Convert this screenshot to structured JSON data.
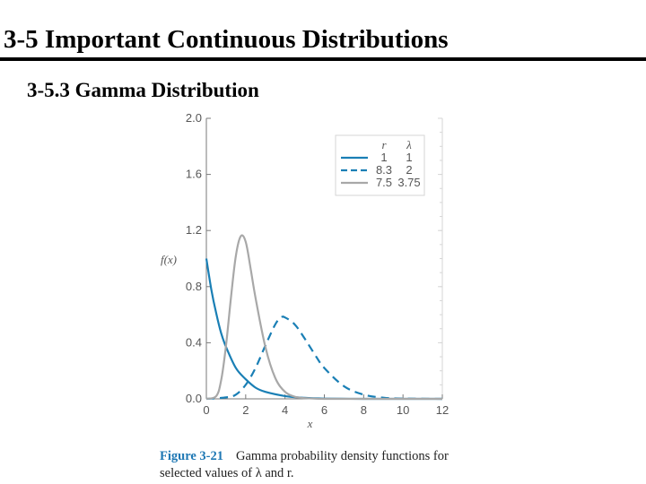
{
  "slide": {
    "title": "3-5   Important Continuous Distributions",
    "subtitle": "3-5.3 Gamma Distribution"
  },
  "caption": {
    "label": "Figure 3-21",
    "text": "Gamma probability density functions for selected values of λ and r."
  },
  "colors": {
    "series1": "#1a7fb5",
    "series2": "#1a7fb5",
    "series3": "#a8a8a8",
    "grid": "#d6d6d6",
    "axis": "#7a7a7a",
    "caption_label": "#1f78b4"
  },
  "chart_data": {
    "type": "line",
    "xlabel": "x",
    "ylabel": "f(x)",
    "xlim": [
      0,
      12
    ],
    "ylim": [
      0,
      2.0
    ],
    "x_ticks": [
      "0",
      "2",
      "4",
      "6",
      "8",
      "10",
      "12"
    ],
    "y_ticks": [
      "0.0",
      "0.4",
      "0.8",
      "1.2",
      "1.6",
      "2.0"
    ],
    "grid": false,
    "legend": {
      "position": "top-right",
      "headers": [
        "r",
        "λ"
      ]
    },
    "series": [
      {
        "r": "1",
        "lambda": "1",
        "style": "solid",
        "color": "#1a7fb5",
        "x": [
          0,
          0.25,
          0.5,
          0.75,
          1,
          1.5,
          2,
          2.5,
          3,
          4,
          5,
          6,
          8,
          10,
          12
        ],
        "y": [
          1.0,
          0.78,
          0.61,
          0.47,
          0.37,
          0.22,
          0.14,
          0.08,
          0.05,
          0.02,
          0.007,
          0.002,
          0.0,
          0.0,
          0.0
        ]
      },
      {
        "r": "8.3",
        "lambda": "2",
        "style": "dashed",
        "color": "#1a7fb5",
        "x": [
          0,
          1,
          1.5,
          2,
          2.5,
          3,
          3.5,
          3.8,
          4,
          4.5,
          5,
          5.5,
          6,
          7,
          8,
          9,
          10,
          12
        ],
        "y": [
          0,
          0.01,
          0.03,
          0.1,
          0.22,
          0.38,
          0.53,
          0.58,
          0.58,
          0.53,
          0.43,
          0.32,
          0.22,
          0.09,
          0.03,
          0.008,
          0.002,
          0.0
        ]
      },
      {
        "r": "7.5",
        "lambda": "3.75",
        "style": "solid",
        "color": "#a8a8a8",
        "x": [
          0,
          0.5,
          0.75,
          1,
          1.25,
          1.5,
          1.75,
          2,
          2.25,
          2.5,
          3,
          3.5,
          4,
          4.5,
          5,
          6,
          8,
          12
        ],
        "y": [
          0,
          0.02,
          0.13,
          0.38,
          0.72,
          1.02,
          1.16,
          1.12,
          0.93,
          0.72,
          0.37,
          0.15,
          0.05,
          0.015,
          0.005,
          0.0,
          0.0,
          0.0
        ]
      }
    ]
  }
}
